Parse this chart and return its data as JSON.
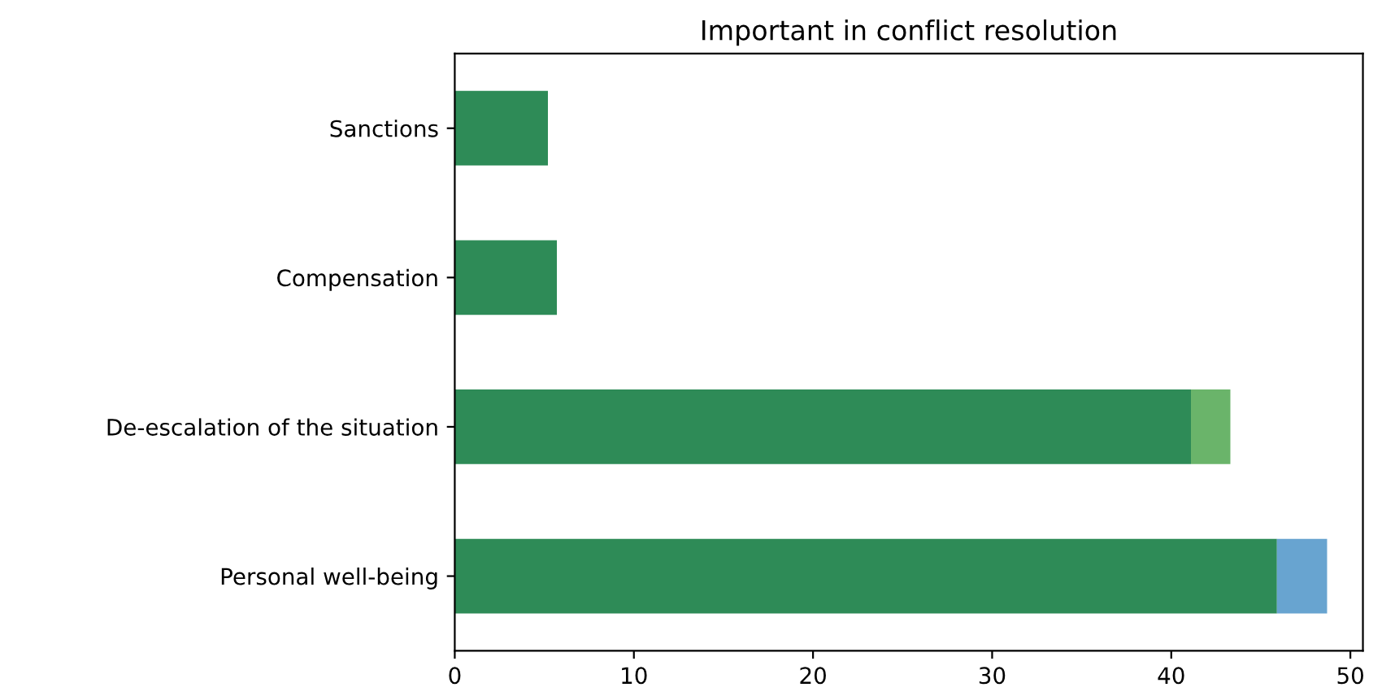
{
  "chart_data": {
    "type": "bar",
    "orientation": "horizontal",
    "stacked": true,
    "title": "Important in conflict resolution",
    "categories": [
      "Sanctions",
      "Compensation",
      "De-escalation of the situation",
      "Personal well-being"
    ],
    "series": [
      {
        "color": "#2e8b57",
        "values": [
          5.2,
          5.7,
          41.1,
          45.9
        ]
      },
      {
        "color": "#6ab46a",
        "values": [
          null,
          null,
          2.2,
          null
        ]
      },
      {
        "color": "#68a4d0",
        "values": [
          null,
          null,
          null,
          2.8
        ]
      }
    ],
    "xlim": [
      0,
      50.7
    ],
    "xticks": [
      0,
      10,
      20,
      30,
      40,
      50
    ],
    "grid": false,
    "legend": false
  }
}
